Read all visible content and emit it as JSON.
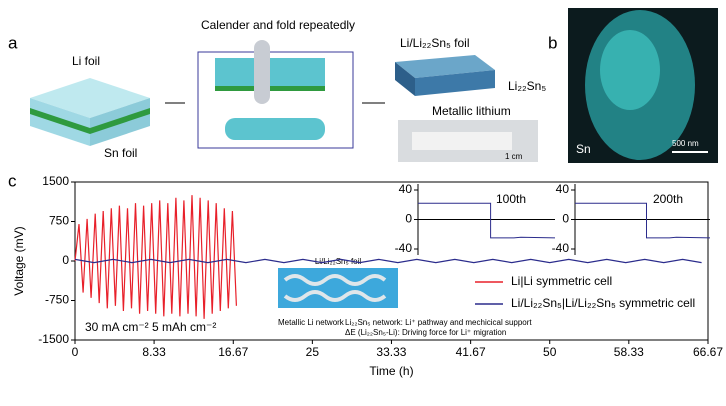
{
  "panel_labels": [
    "a",
    "b",
    "c"
  ],
  "diagram": {
    "title": "Calender and fold repeatedly",
    "li_foil": "Li foil",
    "sn_foil": "Sn foil",
    "product": "Li/Li₂₂Sn₅ foil",
    "alloy": "Li₂₂Sn₅",
    "metal": "Metallic lithium",
    "scale": "1 cm"
  },
  "micrograph": {
    "element": "Sn",
    "scale": "500 nm"
  },
  "schematic": {
    "title": "Li/Li₂₂Sn₅ foil",
    "network": "Metallic Li network",
    "alloy_note": "Li₂₂Sn₅ network: Li⁺ pathway and mechicical support",
    "energy_note": "ΔE (Li₂₂Sn₅-Li): Driving force for Li⁺ migration"
  },
  "chart_data": [
    {
      "type": "line",
      "x_label": "Time (h)",
      "y_label": "Voltage (mV)",
      "xlim": [
        0,
        66.67
      ],
      "xticks": [
        0,
        8.33,
        16.67,
        25,
        33.33,
        41.67,
        50,
        58.33,
        66.67
      ],
      "ylim": [
        -1500,
        1500
      ],
      "yticks": [
        -1500,
        -750,
        0,
        750,
        1500
      ],
      "legend": "center-right",
      "annotation": "30 mA cm⁻²  5 mAh cm⁻²",
      "series": [
        {
          "name": "Li|Li symmetric cell",
          "color": "#e8202a",
          "x": [
            0,
            0.425,
            0.85,
            1.275,
            1.7,
            2.125,
            2.55,
            2.975,
            3.4,
            3.825,
            4.25,
            4.675,
            5.1,
            5.525,
            5.95,
            6.375,
            6.8,
            7.225,
            7.65,
            8.075,
            8.5,
            8.925,
            9.35,
            9.775,
            10.2,
            10.625,
            11.05,
            11.475,
            11.9,
            12.325,
            12.75,
            13.175,
            13.6,
            14.025,
            14.45,
            14.875,
            15.3,
            15.725,
            16.15,
            16.575,
            17
          ],
          "values": [
            0,
            700,
            -600,
            800,
            -700,
            900,
            -800,
            950,
            -900,
            1000,
            -850,
            1050,
            -950,
            1000,
            -900,
            1100,
            -1000,
            1050,
            -950,
            1100,
            -1000,
            1150,
            -1050,
            1100,
            -1000,
            1200,
            -1050,
            1150,
            -1000,
            1250,
            -1050,
            1200,
            -1100,
            1150,
            -1000,
            1100,
            -950,
            1000,
            -900,
            950,
            -850
          ]
        },
        {
          "name": "Li/Li₂₂Sn₅|Li/Li₂₂Sn₅ symmetric cell",
          "color": "#2b2c8c",
          "x": [
            0,
            2,
            4,
            6,
            8,
            10,
            12,
            14,
            16,
            18,
            20,
            22,
            24,
            26,
            28,
            30,
            32,
            34,
            36,
            38,
            40,
            42,
            44,
            46,
            48,
            50,
            52,
            54,
            56,
            58,
            60,
            62,
            64,
            66
          ],
          "values": [
            30,
            -30,
            30,
            -30,
            30,
            -30,
            30,
            -30,
            30,
            -30,
            30,
            -30,
            30,
            -30,
            30,
            -30,
            30,
            -30,
            30,
            -30,
            30,
            -30,
            30,
            -30,
            30,
            -30,
            30,
            -30,
            30,
            -30,
            30,
            -30,
            30,
            -30
          ]
        }
      ]
    },
    {
      "type": "line",
      "title": "100th",
      "xlim": [
        0,
        10
      ],
      "ylim": [
        -40,
        40
      ],
      "yticks": [
        -40,
        0,
        40
      ],
      "zero_line": true,
      "series": [
        {
          "color": "#2b2c8c",
          "x": [
            0,
            5.3,
            5.3,
            7,
            7.5,
            10
          ],
          "values": [
            22,
            22,
            -25,
            -25,
            -24,
            -25
          ]
        }
      ]
    },
    {
      "type": "line",
      "title": "200th",
      "xlim": [
        0,
        10
      ],
      "ylim": [
        -40,
        40
      ],
      "yticks": [
        -40,
        0,
        40
      ],
      "zero_line": true,
      "series": [
        {
          "color": "#2b2c8c",
          "x": [
            0,
            5.3,
            5.3,
            7,
            7.5,
            10
          ],
          "values": [
            22,
            22,
            -25,
            -25,
            -24,
            -25
          ]
        }
      ]
    }
  ]
}
